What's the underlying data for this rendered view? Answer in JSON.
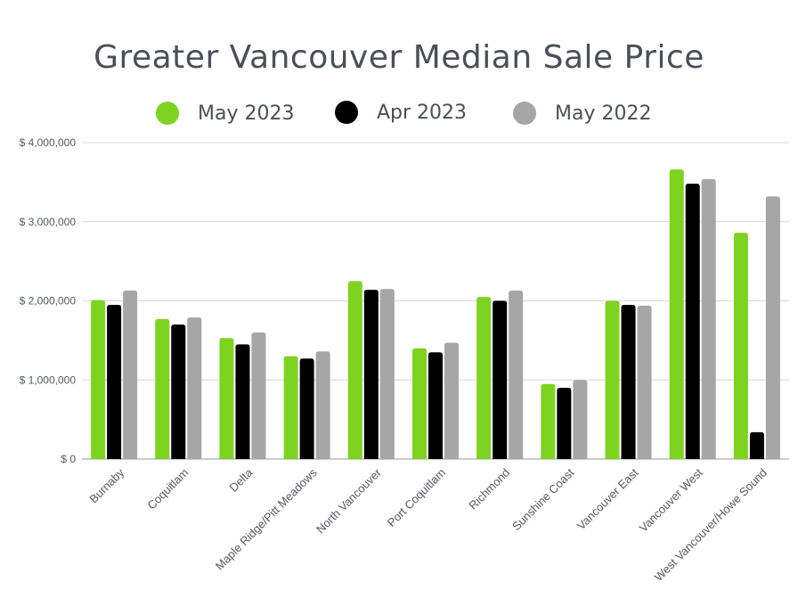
{
  "chart_data": {
    "type": "bar",
    "title": "Greater Vancouver Median Sale Price",
    "categories": [
      "Burnaby",
      "Coquitlam",
      "Delta",
      "Maple Ridge/Pitt Meadows",
      "North Vancouver",
      "Port Coquitlam",
      "Richmond",
      "Sunshine Coast",
      "Vancouver East",
      "Vancouver West",
      "West Vancouver/Howe Sound"
    ],
    "series": [
      {
        "name": "May 2023",
        "color": "#7ed321",
        "values": [
          2010000,
          1770000,
          1530000,
          1300000,
          2250000,
          1400000,
          2050000,
          950000,
          2000000,
          3660000,
          2860000
        ]
      },
      {
        "name": "Apr 2023",
        "color": "#000000",
        "values": [
          1950000,
          1700000,
          1450000,
          1270000,
          2140000,
          1350000,
          2000000,
          900000,
          1950000,
          3480000,
          340000
        ]
      },
      {
        "name": "May 2022",
        "color": "#a6a6a6",
        "values": [
          2130000,
          1790000,
          1600000,
          1360000,
          2150000,
          1470000,
          2130000,
          1000000,
          1940000,
          3540000,
          3320000
        ]
      }
    ],
    "yticks": [
      "$ 0",
      "$ 1,000,000",
      "$ 2,000,000",
      "$ 3,000,000",
      "$ 4,000,000"
    ],
    "ylim": [
      0,
      4000000
    ],
    "xlabel": "",
    "ylabel": "",
    "grid": true,
    "legend_position": "top"
  }
}
